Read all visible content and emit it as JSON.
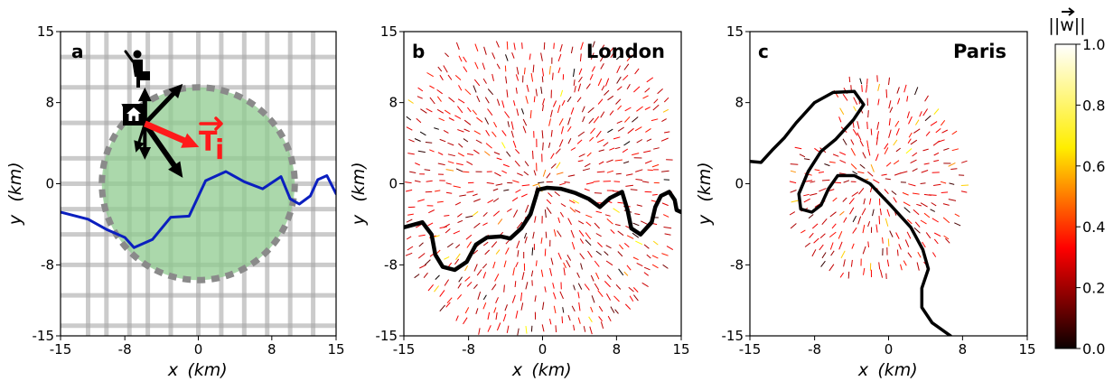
{
  "colors": {
    "river_a": "#0b1fbf",
    "circle_fill": "#8fcb8f",
    "circle_edge": "#8a8a8a",
    "grid_street": "#a9a9a9",
    "arrow_black": "#000000",
    "arrow_red": "#ff1a1a",
    "river_bc": "#000000"
  },
  "icons": {
    "home": "home-icon",
    "person": "person-with-briefcase-icon"
  },
  "chart_data": [
    {
      "type": "diagram",
      "panel_label": "a",
      "title": "",
      "xlabel": "x",
      "xlabel_unit": "(km)",
      "ylabel": "y",
      "ylabel_unit": "(km)",
      "xlim": [
        -15,
        15
      ],
      "ylim": [
        -15,
        15
      ],
      "xticks": [
        -15,
        -8,
        0,
        8,
        15
      ],
      "yticks": [
        -15,
        -8,
        0,
        8,
        15
      ],
      "annotation_vector": "T",
      "annotation_subscript": "i",
      "circle": {
        "center": [
          0,
          0
        ],
        "radius": 10.5
      },
      "home": [
        -7,
        7
      ],
      "river": [
        [
          -15,
          -2.8
        ],
        [
          -12,
          -3.5
        ],
        [
          -10,
          -4.5
        ],
        [
          -8,
          -5.3
        ],
        [
          -7,
          -6.3
        ],
        [
          -5,
          -5.5
        ],
        [
          -3,
          -3.3
        ],
        [
          -1,
          -3.2
        ],
        [
          0.8,
          0.3
        ],
        [
          3,
          1.2
        ],
        [
          5,
          0.2
        ],
        [
          7,
          -0.5
        ],
        [
          9,
          0.7
        ],
        [
          10,
          -1.5
        ],
        [
          11,
          -2.0
        ],
        [
          12.2,
          -1.2
        ],
        [
          13,
          0.4
        ],
        [
          14,
          0.8
        ],
        [
          15,
          -1
        ]
      ]
    },
    {
      "type": "vector_field",
      "panel_label": "b",
      "title": "London",
      "xlabel": "x",
      "xlabel_unit": "(km)",
      "ylabel": "y",
      "ylabel_unit": "(km)",
      "xlim": [
        -15,
        15
      ],
      "ylim": [
        -15,
        15
      ],
      "xticks": [
        -15,
        -8,
        0,
        8,
        15
      ],
      "yticks": [
        -15,
        -8,
        0,
        8,
        15
      ],
      "field_center": [
        -0.5,
        0
      ],
      "river": [
        [
          -15,
          -4.3
        ],
        [
          -13,
          -3.8
        ],
        [
          -12,
          -5
        ],
        [
          -11.6,
          -7
        ],
        [
          -10.8,
          -8.2
        ],
        [
          -9.5,
          -8.5
        ],
        [
          -8.2,
          -7.7
        ],
        [
          -7.2,
          -6
        ],
        [
          -6,
          -5.3
        ],
        [
          -4.5,
          -5.2
        ],
        [
          -3.5,
          -5.4
        ],
        [
          -2.3,
          -4.4
        ],
        [
          -1.3,
          -3
        ],
        [
          -0.5,
          -0.6
        ],
        [
          0.5,
          -0.4
        ],
        [
          2,
          -0.5
        ],
        [
          3.5,
          -0.9
        ],
        [
          5,
          -1.5
        ],
        [
          6.2,
          -2.3
        ],
        [
          7.3,
          -1.4
        ],
        [
          8.6,
          -0.8
        ],
        [
          9.2,
          -2.6
        ],
        [
          9.6,
          -4.4
        ],
        [
          10.6,
          -5
        ],
        [
          11.8,
          -3.8
        ],
        [
          12.2,
          -2.3
        ],
        [
          12.8,
          -1.2
        ],
        [
          13.7,
          -0.8
        ],
        [
          14.3,
          -1.6
        ],
        [
          14.5,
          -2.6
        ],
        [
          15,
          -2.8
        ]
      ]
    },
    {
      "type": "vector_field",
      "panel_label": "c",
      "title": "Paris",
      "xlabel": "x",
      "xlabel_unit": "(km)",
      "ylabel": "y",
      "ylabel_unit": "(km)",
      "xlim": [
        -15,
        15
      ],
      "ylim": [
        -15,
        15
      ],
      "xticks": [
        -15,
        -8,
        0,
        8,
        15
      ],
      "yticks": [
        -15,
        -8,
        0,
        8,
        15
      ],
      "field_center": [
        -1.5,
        0.5
      ],
      "river": [
        [
          -15,
          2.2
        ],
        [
          -13.8,
          2.1
        ],
        [
          -12.6,
          3.3
        ],
        [
          -11.3,
          4.5
        ],
        [
          -10,
          6
        ],
        [
          -8,
          8
        ],
        [
          -6,
          9
        ],
        [
          -3.7,
          9.1
        ],
        [
          -2.7,
          7.8
        ],
        [
          -3.8,
          6.3
        ],
        [
          -5.7,
          4.4
        ],
        [
          -7.3,
          3.2
        ],
        [
          -8.7,
          1.2
        ],
        [
          -9.7,
          -1
        ],
        [
          -9.5,
          -2.5
        ],
        [
          -8.3,
          -2.8
        ],
        [
          -7.3,
          -2.1
        ],
        [
          -6.5,
          -0.5
        ],
        [
          -5.5,
          0.8
        ],
        [
          -3.7,
          0.8
        ],
        [
          -2,
          0
        ],
        [
          0.3,
          -2.2
        ],
        [
          2.4,
          -4.3
        ],
        [
          3.7,
          -6.5
        ],
        [
          4.3,
          -8.4
        ],
        [
          3.6,
          -10.3
        ],
        [
          3.6,
          -12.2
        ],
        [
          4.7,
          -13.7
        ],
        [
          6.7,
          -15
        ]
      ]
    }
  ],
  "colorbar": {
    "label": "||w||",
    "vmin": 0.0,
    "vmax": 1.0,
    "ticks": [
      "0.0",
      "0.2",
      "0.4",
      "0.6",
      "0.8",
      "1.0"
    ],
    "colormap": "hot"
  }
}
